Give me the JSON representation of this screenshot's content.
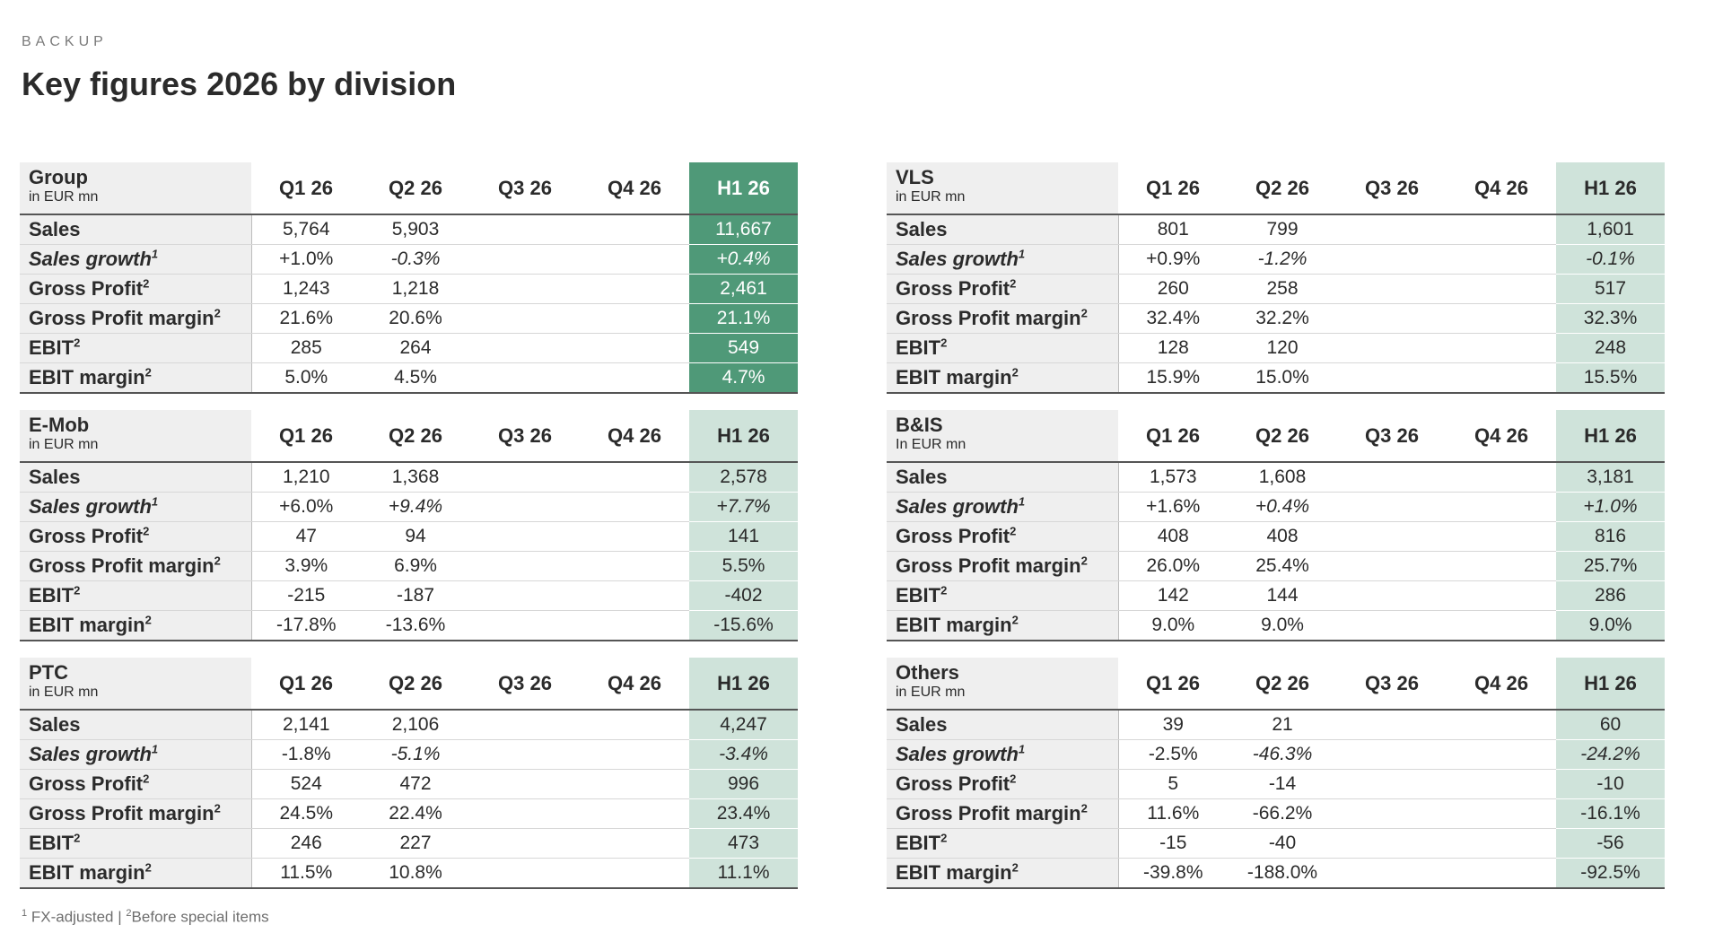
{
  "header": {
    "kicker": "BACKUP",
    "title": "Key figures 2026 by division"
  },
  "columns": [
    "Q1 26",
    "Q2 26",
    "Q3 26",
    "Q4 26",
    "H1 26"
  ],
  "row_labels": [
    {
      "text": "Sales",
      "sup": ""
    },
    {
      "text": "Sales growth",
      "sup": "1"
    },
    {
      "text": "Gross Profit",
      "sup": "2"
    },
    {
      "text": "Gross Profit margin",
      "sup": "2"
    },
    {
      "text": "EBIT",
      "sup": "2"
    },
    {
      "text": "EBIT margin",
      "sup": "2"
    }
  ],
  "colors": {
    "h1_accent": "#4f9978",
    "h1_light": "#cfe3da",
    "label_bg": "#efefef"
  },
  "tables": [
    {
      "id": "group",
      "name": "Group",
      "unit": "in EUR mn",
      "accent": true,
      "rows": [
        [
          "5,764",
          "5,903",
          "",
          "",
          "11,667"
        ],
        [
          "+1.0%",
          "-0.3%",
          "",
          "",
          "+0.4%"
        ],
        [
          "1,243",
          "1,218",
          "",
          "",
          "2,461"
        ],
        [
          "21.6%",
          "20.6%",
          "",
          "",
          "21.1%"
        ],
        [
          "285",
          "264",
          "",
          "",
          "549"
        ],
        [
          "5.0%",
          "4.5%",
          "",
          "",
          "4.7%"
        ]
      ]
    },
    {
      "id": "emob",
      "name": "E-Mob",
      "unit": "in EUR mn",
      "accent": false,
      "rows": [
        [
          "1,210",
          "1,368",
          "",
          "",
          "2,578"
        ],
        [
          "+6.0%",
          "+9.4%",
          "",
          "",
          "+7.7%"
        ],
        [
          "47",
          "94",
          "",
          "",
          "141"
        ],
        [
          "3.9%",
          "6.9%",
          "",
          "",
          "5.5%"
        ],
        [
          "-215",
          "-187",
          "",
          "",
          "-402"
        ],
        [
          "-17.8%",
          "-13.6%",
          "",
          "",
          "-15.6%"
        ]
      ]
    },
    {
      "id": "ptc",
      "name": "PTC",
      "unit": "in EUR mn",
      "accent": false,
      "rows": [
        [
          "2,141",
          "2,106",
          "",
          "",
          "4,247"
        ],
        [
          "-1.8%",
          "-5.1%",
          "",
          "",
          "-3.4%"
        ],
        [
          "524",
          "472",
          "",
          "",
          "996"
        ],
        [
          "24.5%",
          "22.4%",
          "",
          "",
          "23.4%"
        ],
        [
          "246",
          "227",
          "",
          "",
          "473"
        ],
        [
          "11.5%",
          "10.8%",
          "",
          "",
          "11.1%"
        ]
      ]
    },
    {
      "id": "vls",
      "name": "VLS",
      "unit": "in EUR mn",
      "accent": false,
      "rows": [
        [
          "801",
          "799",
          "",
          "",
          "1,601"
        ],
        [
          "+0.9%",
          "-1.2%",
          "",
          "",
          "-0.1%"
        ],
        [
          "260",
          "258",
          "",
          "",
          "517"
        ],
        [
          "32.4%",
          "32.2%",
          "",
          "",
          "32.3%"
        ],
        [
          "128",
          "120",
          "",
          "",
          "248"
        ],
        [
          "15.9%",
          "15.0%",
          "",
          "",
          "15.5%"
        ]
      ]
    },
    {
      "id": "bis",
      "name": "B&IS",
      "unit": "In EUR mn",
      "accent": false,
      "rows": [
        [
          "1,573",
          "1,608",
          "",
          "",
          "3,181"
        ],
        [
          "+1.6%",
          "+0.4%",
          "",
          "",
          "+1.0%"
        ],
        [
          "408",
          "408",
          "",
          "",
          "816"
        ],
        [
          "26.0%",
          "25.4%",
          "",
          "",
          "25.7%"
        ],
        [
          "142",
          "144",
          "",
          "",
          "286"
        ],
        [
          "9.0%",
          "9.0%",
          "",
          "",
          "9.0%"
        ]
      ]
    },
    {
      "id": "others",
      "name": "Others",
      "unit": "in EUR mn",
      "accent": false,
      "rows": [
        [
          "39",
          "21",
          "",
          "",
          "60"
        ],
        [
          "-2.5%",
          "-46.3%",
          "",
          "",
          "-24.2%"
        ],
        [
          "5",
          "-14",
          "",
          "",
          "-10"
        ],
        [
          "11.6%",
          "-66.2%",
          "",
          "",
          "-16.1%"
        ],
        [
          "-15",
          "-40",
          "",
          "",
          "-56"
        ],
        [
          "-39.8%",
          "-188.0%",
          "",
          "",
          "-92.5%"
        ]
      ]
    }
  ],
  "footnote": {
    "sup1": "1",
    "text1": "FX-adjusted",
    "separator": "|",
    "sup2": "2",
    "text2": "Before special items"
  }
}
